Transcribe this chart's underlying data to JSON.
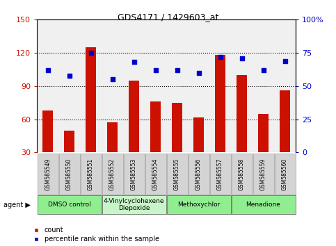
{
  "title": "GDS4171 / 1429603_at",
  "samples": [
    "GSM585549",
    "GSM585550",
    "GSM585551",
    "GSM585552",
    "GSM585553",
    "GSM585554",
    "GSM585555",
    "GSM585556",
    "GSM585557",
    "GSM585558",
    "GSM585559",
    "GSM585560"
  ],
  "counts": [
    68,
    50,
    125,
    57,
    95,
    76,
    75,
    62,
    118,
    100,
    65,
    86
  ],
  "percentiles": [
    62,
    58,
    75,
    55,
    68,
    62,
    62,
    60,
    72,
    71,
    62,
    69
  ],
  "bar_color": "#cc1100",
  "dot_color": "#0000cc",
  "ylim_left": [
    30,
    150
  ],
  "ylim_right": [
    0,
    100
  ],
  "yticks_left": [
    30,
    60,
    90,
    120,
    150
  ],
  "yticks_right": [
    0,
    25,
    50,
    75,
    100
  ],
  "yticklabels_right": [
    "0",
    "25",
    "50",
    "75",
    "100%"
  ],
  "groups": [
    {
      "label": "DMSO control",
      "start": 0,
      "end": 3,
      "color": "#90ee90"
    },
    {
      "label": "4-Vinylcyclohexene\nDiepoxide",
      "start": 3,
      "end": 6,
      "color": "#c8f5c8"
    },
    {
      "label": "Methoxychlor",
      "start": 6,
      "end": 9,
      "color": "#90ee90"
    },
    {
      "label": "Menadione",
      "start": 9,
      "end": 12,
      "color": "#90ee90"
    }
  ],
  "legend_count_label": "count",
  "legend_pct_label": "percentile rank within the sample",
  "background_color": "#ffffff",
  "plot_bg_color": "#f0f0f0",
  "bar_width": 0.5,
  "xlim": [
    -0.5,
    11.5
  ]
}
